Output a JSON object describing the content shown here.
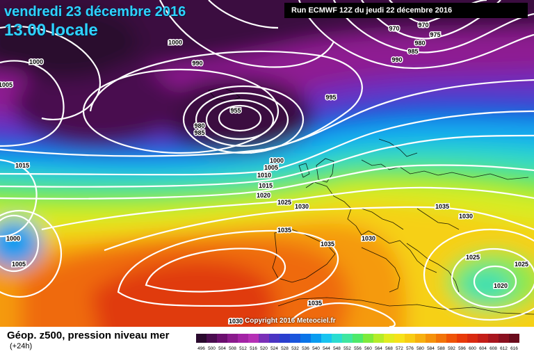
{
  "header": {
    "date": "vendredi 23 décembre 2016",
    "time": "13.00 locale",
    "run": "Run ECMWF 12Z du jeudi 22 décembre 2016"
  },
  "copyright": "Copyright 2016 Meteociel.fr",
  "footer": {
    "title": "Géop. z500, pression niveau mer",
    "subtitle": "(+24h)"
  },
  "legend": {
    "values": [
      "496",
      "500",
      "504",
      "508",
      "512",
      "516",
      "520",
      "524",
      "528",
      "532",
      "536",
      "540",
      "544",
      "548",
      "552",
      "556",
      "560",
      "564",
      "568",
      "572",
      "576",
      "580",
      "584",
      "588",
      "592",
      "596",
      "600",
      "604",
      "608",
      "612",
      "616"
    ],
    "colors": [
      "#2a0a2e",
      "#4a0d4f",
      "#6b0f6e",
      "#8a1a8c",
      "#a323a5",
      "#b530b5",
      "#7a2fb7",
      "#4a34c2",
      "#2a3fce",
      "#1a55dc",
      "#0a74e8",
      "#0a9cf0",
      "#19c4f0",
      "#2bdcd0",
      "#3fe6a0",
      "#4ee96a",
      "#7eea3c",
      "#b4ec2a",
      "#e0ec20",
      "#f6e21a",
      "#f8cc14",
      "#f7b010",
      "#f5920c",
      "#f2740a",
      "#ef5408",
      "#e83a0a",
      "#d92a10",
      "#c41e18",
      "#a8161e",
      "#8a1020",
      "#6a0c1c"
    ]
  },
  "isobars": [
    {
      "v": "1000",
      "at": "252,64"
    },
    {
      "v": "1000",
      "at": "52,92"
    },
    {
      "v": "1005",
      "at": "8,125"
    },
    {
      "v": "990",
      "at": "284,94"
    },
    {
      "v": "970",
      "at": "567,44"
    },
    {
      "v": "970",
      "at": "609,39"
    },
    {
      "v": "975",
      "at": "626,53"
    },
    {
      "v": "980",
      "at": "604,65"
    },
    {
      "v": "985",
      "at": "594,77"
    },
    {
      "v": "990",
      "at": "571,89"
    },
    {
      "v": "995",
      "at": "476,143"
    },
    {
      "v": "955",
      "at": "339,162"
    },
    {
      "v": "980",
      "at": "287,184"
    },
    {
      "v": "985",
      "at": "287,194"
    },
    {
      "v": "1000",
      "at": "398,234"
    },
    {
      "v": "1005",
      "at": "390,244"
    },
    {
      "v": "1010",
      "at": "380,255"
    },
    {
      "v": "1015",
      "at": "32,241"
    },
    {
      "v": "1015",
      "at": "382,270"
    },
    {
      "v": "1020",
      "at": "379,284"
    },
    {
      "v": "1025",
      "at": "409,294"
    },
    {
      "v": "1030",
      "at": "434,300"
    },
    {
      "v": "1035",
      "at": "636,300"
    },
    {
      "v": "1030",
      "at": "670,314"
    },
    {
      "v": "1035",
      "at": "409,334"
    },
    {
      "v": "1030",
      "at": "530,346"
    },
    {
      "v": "1035",
      "at": "471,354"
    },
    {
      "v": "1000",
      "at": "19,346"
    },
    {
      "v": "1005",
      "at": "27,383"
    },
    {
      "v": "1025",
      "at": "680,373"
    },
    {
      "v": "1025",
      "at": "750,383"
    },
    {
      "v": "1020",
      "at": "720,414"
    },
    {
      "v": "1035",
      "at": "453,439"
    },
    {
      "v": "1030",
      "at": "339,465"
    }
  ]
}
